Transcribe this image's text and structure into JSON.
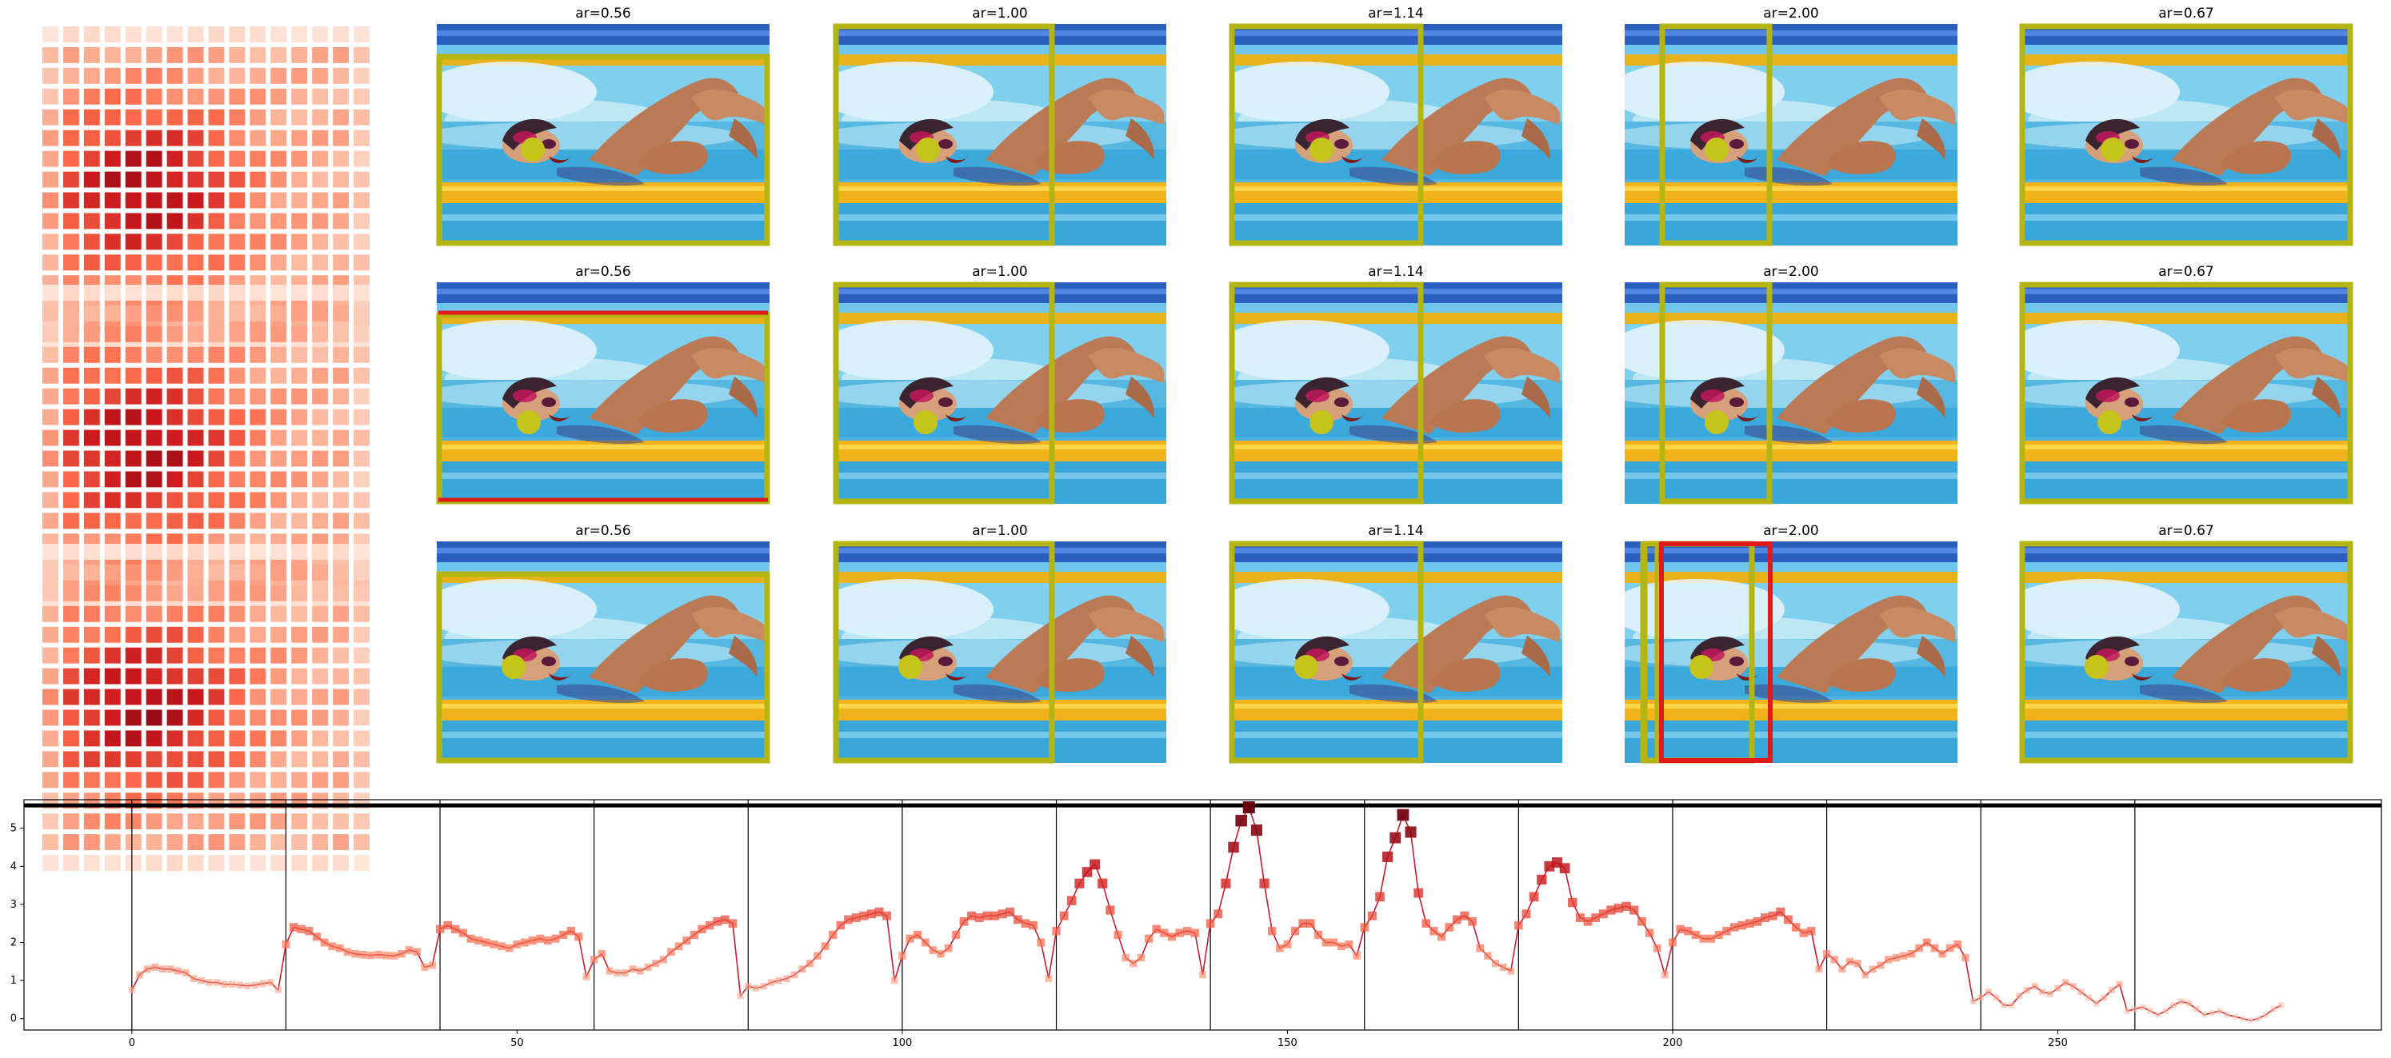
{
  "figure": {
    "panel_rows": 3,
    "heatmap_cells_per_side": 16,
    "crop_panels": [
      {
        "title": "ar=0.56"
      },
      {
        "title": "ar=1.00"
      },
      {
        "title": "ar=1.14"
      },
      {
        "title": "ar=2.00"
      },
      {
        "title": "ar=0.67"
      }
    ],
    "photo_description": "freestyle swimmer in pool lane, yellow lane ropes, blue water",
    "colors": {
      "crop_box": "#b5b512",
      "highlight_box": "#e11919",
      "focus_dot": "#c4c41a",
      "line": "#c91d2a",
      "segment_lines": "#000000"
    }
  },
  "chart_data": {
    "type": "line",
    "xlabel": "",
    "ylabel": "",
    "xlim": [
      -14,
      292
    ],
    "ylim": [
      -0.3,
      5.75
    ],
    "xticks": [
      0,
      50,
      100,
      150,
      200,
      250
    ],
    "yticks": [
      0,
      1,
      2,
      3,
      4,
      5
    ],
    "segment_boundaries": [
      0,
      20,
      40,
      60,
      80,
      100,
      120,
      140,
      160,
      180,
      200,
      220,
      240,
      260
    ],
    "reference_line_y": 5.6,
    "x_start": 0,
    "series": [
      {
        "values": [
          0.75,
          1.15,
          1.3,
          1.35,
          1.3,
          1.3,
          1.25,
          1.2,
          1.05,
          1.0,
          0.95,
          0.95,
          0.9,
          0.9,
          0.88,
          0.86,
          0.88,
          0.92,
          0.95,
          0.75,
          1.95,
          2.4,
          2.35,
          2.3,
          2.15,
          2.0,
          1.9,
          1.85,
          1.75,
          1.7,
          1.68,
          1.66,
          1.68,
          1.66,
          1.65,
          1.7,
          1.8,
          1.75,
          1.35,
          1.4,
          2.35,
          2.45,
          2.35,
          2.25,
          2.1,
          2.05,
          2.0,
          1.95,
          1.9,
          1.85,
          1.95,
          2.0,
          2.05,
          2.1,
          2.05,
          2.1,
          2.2,
          2.3,
          2.15,
          1.1,
          1.55,
          1.7,
          1.25,
          1.2,
          1.2,
          1.3,
          1.25,
          1.35,
          1.45,
          1.55,
          1.75,
          1.9,
          2.05,
          2.2,
          2.35,
          2.45,
          2.55,
          2.6,
          2.5,
          0.6,
          0.85,
          0.8,
          0.85,
          0.95,
          1.0,
          1.05,
          1.15,
          1.3,
          1.45,
          1.65,
          1.9,
          2.2,
          2.45,
          2.6,
          2.65,
          2.7,
          2.75,
          2.8,
          2.7,
          1.0,
          1.65,
          2.1,
          2.2,
          2.0,
          1.8,
          1.7,
          1.85,
          2.2,
          2.55,
          2.7,
          2.65,
          2.7,
          2.7,
          2.75,
          2.8,
          2.6,
          2.5,
          2.45,
          2.0,
          1.05,
          2.3,
          2.7,
          3.1,
          3.55,
          3.85,
          4.05,
          3.55,
          2.85,
          2.2,
          1.6,
          1.45,
          1.6,
          2.1,
          2.35,
          2.25,
          2.15,
          2.25,
          2.3,
          2.25,
          1.15,
          2.5,
          2.75,
          3.55,
          4.5,
          5.2,
          5.55,
          4.95,
          3.55,
          2.3,
          1.85,
          1.95,
          2.3,
          2.5,
          2.5,
          2.2,
          2.0,
          2.0,
          1.9,
          1.95,
          1.65,
          2.4,
          2.7,
          3.2,
          4.25,
          4.75,
          5.35,
          4.9,
          3.3,
          2.5,
          2.3,
          2.15,
          2.4,
          2.6,
          2.7,
          2.55,
          1.85,
          1.65,
          1.45,
          1.35,
          1.25,
          2.45,
          2.75,
          3.2,
          3.65,
          4.0,
          4.1,
          3.95,
          3.05,
          2.65,
          2.55,
          2.65,
          2.75,
          2.85,
          2.9,
          2.95,
          2.85,
          2.55,
          2.25,
          1.85,
          1.15,
          2.0,
          2.35,
          2.3,
          2.2,
          2.1,
          2.1,
          2.2,
          2.3,
          2.4,
          2.45,
          2.5,
          2.55,
          2.65,
          2.7,
          2.8,
          2.6,
          2.4,
          2.25,
          2.3,
          1.3,
          1.7,
          1.55,
          1.3,
          1.5,
          1.45,
          1.15,
          1.3,
          1.4,
          1.55,
          1.6,
          1.65,
          1.7,
          1.85,
          2.0,
          1.85,
          1.7,
          1.85,
          1.95,
          1.6,
          0.45,
          0.55,
          0.7,
          0.55,
          0.35,
          0.35,
          0.6,
          0.75,
          0.85,
          0.7,
          0.65,
          0.8,
          0.95,
          0.85,
          0.7,
          0.55,
          0.4,
          0.55,
          0.75,
          0.9,
          0.2,
          0.25,
          0.3,
          0.2,
          0.1,
          0.2,
          0.35,
          0.45,
          0.4,
          0.25,
          0.1,
          0.15,
          0.2,
          0.1,
          0.05,
          0.0,
          -0.05,
          0.0,
          0.1,
          0.25,
          0.35
        ]
      }
    ]
  }
}
